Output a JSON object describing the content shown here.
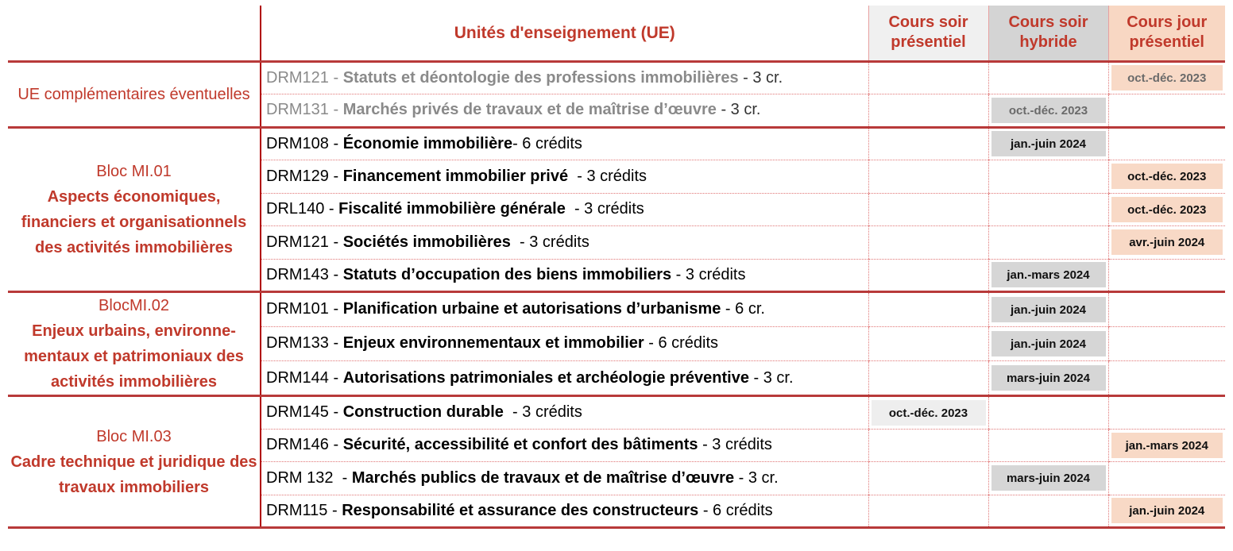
{
  "header": {
    "ue_title": "Unités d'enseignement (UE)",
    "col_evening_presentiel": [
      "Cours soir",
      "présentiel"
    ],
    "col_evening_hybride": [
      "Cours soir",
      "hybride"
    ],
    "col_day_presentiel": [
      "Cours jour",
      "présentiel"
    ]
  },
  "colors": {
    "accent_red": "#c0392b",
    "evening_presentiel_bg": "#eeeeee",
    "evening_hybride_bg": "#d6d6d6",
    "day_presentiel_bg": "#f8d9c6"
  },
  "groups": [
    {
      "title": "UE complémentaires éventuelles",
      "subtitle": "",
      "rows": [
        {
          "code": "DRM121 - ",
          "name": "Statuts et déontologie des professions immobilières",
          "credits": " - 3 cr.",
          "grey": true,
          "evening_presentiel": "",
          "evening_hybride": "",
          "day_presentiel": "oct.-déc. 2023"
        },
        {
          "code": "DRM131 - ",
          "name": "Marchés privés de travaux et de maîtrise d’œuvre",
          "credits": " - 3 cr.",
          "grey": true,
          "evening_presentiel": "",
          "evening_hybride": "oct.-déc. 2023",
          "day_presentiel": ""
        }
      ]
    },
    {
      "title": "Bloc MI.01",
      "subtitle": "Aspects économiques, financiers et organisationnels des activités immobilières",
      "rows": [
        {
          "code": "DRM108 - ",
          "name": "Économie immobilière",
          "credits": "- 6 crédits",
          "grey": false,
          "evening_presentiel": "",
          "evening_hybride": "jan.-juin 2024",
          "day_presentiel": ""
        },
        {
          "code": "DRM129 - ",
          "name": "Financement immobilier privé",
          "credits": "  - 3 crédits",
          "grey": false,
          "evening_presentiel": "",
          "evening_hybride": "",
          "day_presentiel": "oct.-déc. 2023"
        },
        {
          "code": "DRL140 - ",
          "name": "Fiscalité immobilière générale",
          "credits": "  - 3 crédits",
          "grey": false,
          "evening_presentiel": "",
          "evening_hybride": "",
          "day_presentiel": "oct.-déc. 2023"
        },
        {
          "code": "DRM121 - ",
          "name": "Sociétés immobilières",
          "credits": "  - 3 crédits",
          "grey": false,
          "evening_presentiel": "",
          "evening_hybride": "",
          "day_presentiel": "avr.-juin 2024"
        },
        {
          "code": "DRM143 - ",
          "name": "Statuts d’occupation des biens immobiliers",
          "credits": " - 3 crédits",
          "grey": false,
          "evening_presentiel": "",
          "evening_hybride": "jan.-mars 2024",
          "day_presentiel": ""
        }
      ]
    },
    {
      "title": "BlocMI.02",
      "subtitle": "Enjeux urbains, environne-mentaux et patrimoniaux des activités immobilières",
      "rows": [
        {
          "code": "DRM101 - ",
          "name": "Planification urbaine et autorisations d’urbanisme",
          "credits": " - 6 cr.",
          "grey": false,
          "evening_presentiel": "",
          "evening_hybride": "jan.-juin 2024",
          "day_presentiel": ""
        },
        {
          "code": "DRM133 - ",
          "name": "Enjeux environnementaux et immobilier",
          "credits": " - 6 crédits",
          "grey": false,
          "evening_presentiel": "",
          "evening_hybride": "jan.-juin 2024",
          "day_presentiel": ""
        },
        {
          "code": "DRM144 - ",
          "name": "Autorisations patrimoniales et archéologie préventive",
          "credits": " - 3 cr.",
          "grey": false,
          "evening_presentiel": "",
          "evening_hybride": "mars-juin 2024",
          "day_presentiel": ""
        }
      ]
    },
    {
      "title": "Bloc MI.03",
      "subtitle": "Cadre technique et juridique des travaux immobiliers",
      "rows": [
        {
          "code": "DRM145 - ",
          "name": "Construction durable",
          "credits": "  - 3 crédits",
          "grey": false,
          "evening_presentiel": "oct.-déc. 2023",
          "evening_hybride": "",
          "day_presentiel": ""
        },
        {
          "code": "DRM146 - ",
          "name": "Sécurité, accessibilité et confort des bâtiments",
          "credits": " - 3 crédits",
          "grey": false,
          "evening_presentiel": "",
          "evening_hybride": "",
          "day_presentiel": "jan.-mars 2024"
        },
        {
          "code": "DRM 132  - ",
          "name": "Marchés publics de travaux et de maîtrise d’œuvre",
          "credits": " - 3 cr.",
          "grey": false,
          "evening_presentiel": "",
          "evening_hybride": "mars-juin 2024",
          "day_presentiel": ""
        },
        {
          "code": "DRM115 - ",
          "name": "Responsabilité et assurance des constructeurs",
          "credits": " - 6 crédits",
          "grey": false,
          "evening_presentiel": "",
          "evening_hybride": "",
          "day_presentiel": "jan.-juin 2024"
        }
      ]
    }
  ]
}
